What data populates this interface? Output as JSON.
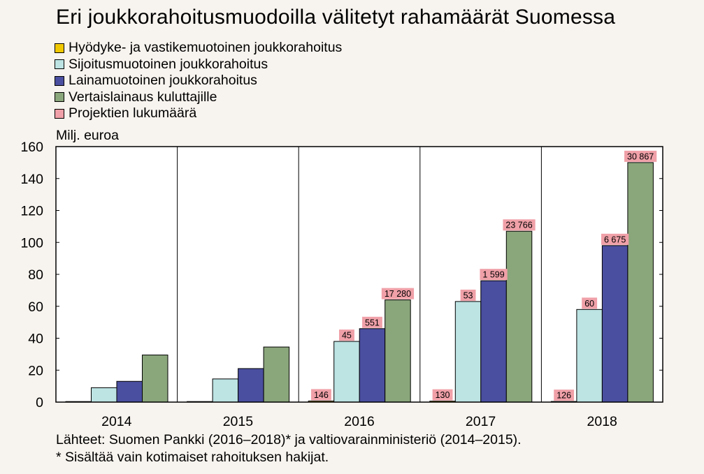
{
  "chart_data": {
    "type": "bar",
    "title": "Eri joukkorahoitusmuodoilla välitetyt rahamäärät Suomessa",
    "ylabel": "Milj. euroa",
    "ylim": [
      0,
      160
    ],
    "yticks": [
      0,
      20,
      40,
      60,
      80,
      100,
      120,
      140,
      160
    ],
    "grid": "vertical separators between categories",
    "legend_position": "top-left",
    "categories": [
      "2014",
      "2015",
      "2016",
      "2017",
      "2018"
    ],
    "series": [
      {
        "name": "Hyödyke- ja vastikemuotoinen joukkorahoitus",
        "color": "#f0c800",
        "values": [
          0,
          0.3,
          0.7,
          0.6,
          0.4
        ]
      },
      {
        "name": "Sijoitusmuotoinen joukkorahoitus",
        "color": "#bde3e3",
        "values": [
          9,
          14.5,
          38,
          63,
          58
        ]
      },
      {
        "name": "Lainamuotoinen joukkorahoitus",
        "color": "#4b4fa0",
        "values": [
          13,
          21,
          46,
          76,
          98
        ]
      },
      {
        "name": "Vertaislainaus kuluttajille",
        "color": "#8aa67b",
        "values": [
          29.5,
          34.5,
          64,
          107,
          150
        ]
      }
    ],
    "project_counts_label": "Projektien lukumäärä",
    "project_counts_color": "#f0a0a8",
    "project_counts": [
      {
        "category": "2016",
        "series": 0,
        "label": "146"
      },
      {
        "category": "2016",
        "series": 1,
        "label": "45"
      },
      {
        "category": "2016",
        "series": 2,
        "label": "551"
      },
      {
        "category": "2016",
        "series": 3,
        "label": "17 280"
      },
      {
        "category": "2017",
        "series": 0,
        "label": "130"
      },
      {
        "category": "2017",
        "series": 1,
        "label": "53"
      },
      {
        "category": "2017",
        "series": 2,
        "label": "1 599"
      },
      {
        "category": "2017",
        "series": 3,
        "label": "23 766"
      },
      {
        "category": "2018",
        "series": 0,
        "label": "126"
      },
      {
        "category": "2018",
        "series": 1,
        "label": "60"
      },
      {
        "category": "2018",
        "series": 2,
        "label": "6 675"
      },
      {
        "category": "2018",
        "series": 3,
        "label": "30 867"
      }
    ]
  },
  "footnotes": [
    "Lähteet: Suomen Pankki (2016–2018)* ja valtiovarainministeriö (2014–2015).",
    "* Sisältää vain kotimaiset rahoituksen hakijat."
  ]
}
